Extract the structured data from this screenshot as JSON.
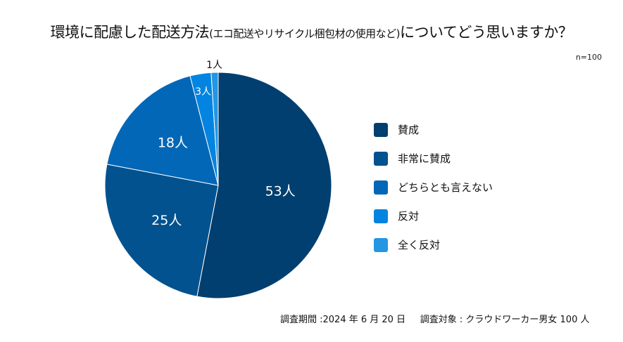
{
  "title": {
    "main1": "環境に配慮した配送方法",
    "sub": "(エコ配送やリサイクル梱包材の使用など)",
    "main2": "についてどう思いますか？"
  },
  "n_label": "n=100",
  "footer": {
    "period": "調査期間 :2024 年 6 月 20 日",
    "target": "調査対象 : クラウドワーカー男女 100 人"
  },
  "chart_data": {
    "type": "pie",
    "unit": "人",
    "start": "top",
    "direction": "clockwise",
    "legend_position": "right",
    "slices": [
      {
        "name": "賛成",
        "value": 53,
        "label": "53人",
        "color": "#003f6f"
      },
      {
        "name": "非常に賛成",
        "value": 25,
        "label": "25人",
        "color": "#02528f"
      },
      {
        "name": "どちらとも言えない",
        "value": 18,
        "label": "18人",
        "color": "#0367b8"
      },
      {
        "name": "反対",
        "value": 3,
        "label": "3人",
        "color": "#0384e0"
      },
      {
        "name": "全く反対",
        "value": 1,
        "label": "1人",
        "color": "#2396e4"
      }
    ]
  }
}
